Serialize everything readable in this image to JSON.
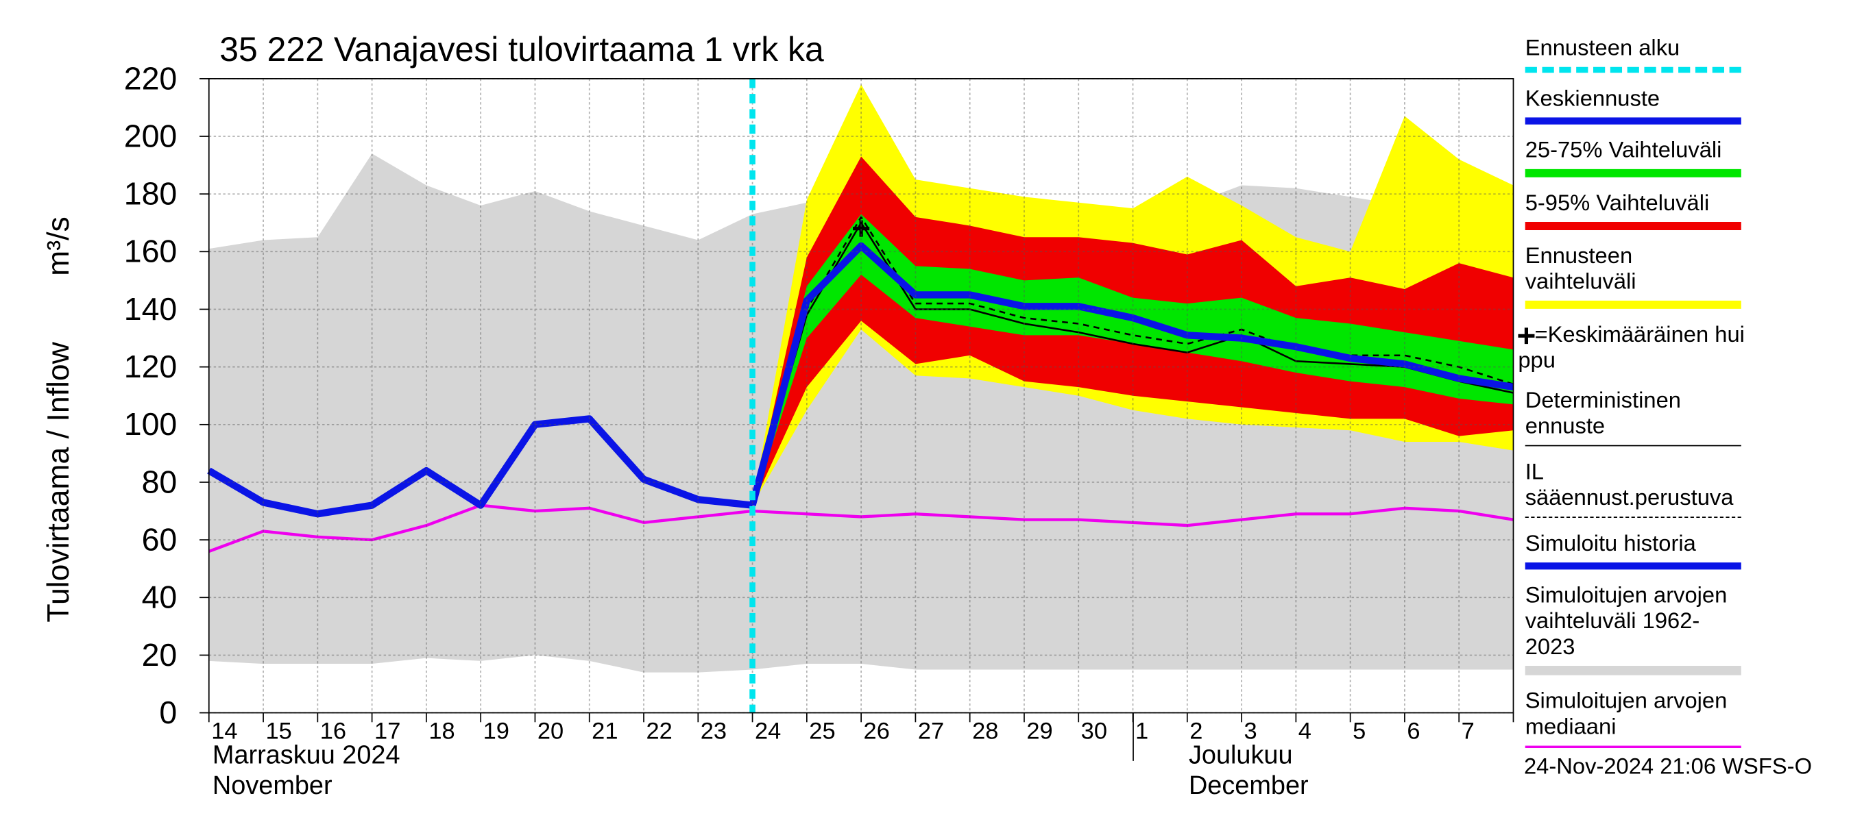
{
  "chart_data": {
    "type": "band-forecast",
    "title": "35 222 Vanajavesi tulovirtaama 1 vrk ka",
    "y_label": "Tulovirtaama / Inflow",
    "y_unit": "m³/s",
    "categories": [
      "14",
      "15",
      "16",
      "17",
      "18",
      "19",
      "20",
      "21",
      "22",
      "23",
      "24",
      "25",
      "26",
      "27",
      "28",
      "29",
      "30",
      "1",
      "2",
      "3",
      "4",
      "5",
      "6",
      "7",
      null
    ],
    "month_labels": [
      [
        "Marraskuu 2024",
        "November"
      ],
      [
        "Joulukuu",
        "December"
      ]
    ],
    "footer": "24-Nov-2024 21:06 WSFS-O",
    "ylim": [
      0,
      220
    ],
    "yticks": [
      0,
      20,
      40,
      60,
      80,
      100,
      120,
      140,
      160,
      180,
      200,
      220
    ],
    "grid": true,
    "series": [
      {
        "name": "Ennusteen alku",
        "kind": "vline",
        "color": "#00e5ee",
        "style": "thick-dashed",
        "index": 10
      },
      {
        "name": "Keskiennuste",
        "kind": "line",
        "color": "#0a14e6",
        "style": "thick",
        "values": [
          null,
          null,
          null,
          null,
          null,
          null,
          null,
          null,
          null,
          null,
          72,
          143,
          162,
          145,
          145,
          141,
          141,
          137,
          131,
          130,
          127,
          123,
          121,
          116,
          113
        ]
      },
      {
        "name": "25-75% Vaihteluväli",
        "kind": "band",
        "color": "#00e600",
        "upper": [
          null,
          null,
          null,
          null,
          null,
          null,
          null,
          null,
          null,
          null,
          72,
          148,
          173,
          155,
          154,
          150,
          151,
          144,
          142,
          144,
          137,
          135,
          132,
          129,
          126
        ],
        "lower": [
          null,
          null,
          null,
          null,
          null,
          null,
          null,
          null,
          null,
          null,
          72,
          130,
          152,
          137,
          134,
          131,
          131,
          128,
          125,
          122,
          118,
          115,
          113,
          109,
          107
        ]
      },
      {
        "name": "5-95% Vaihteluväli",
        "kind": "band",
        "color": "#f00000",
        "upper": [
          null,
          null,
          null,
          null,
          null,
          null,
          null,
          null,
          null,
          null,
          72,
          158,
          193,
          172,
          169,
          165,
          165,
          163,
          159,
          164,
          148,
          151,
          147,
          156,
          151
        ],
        "lower": [
          null,
          null,
          null,
          null,
          null,
          null,
          null,
          null,
          null,
          null,
          72,
          113,
          136,
          121,
          124,
          115,
          113,
          110,
          108,
          106,
          104,
          102,
          102,
          96,
          98
        ]
      },
      {
        "name": "Ennusteen vaihteluväli",
        "kind": "band",
        "color": "#ffff00",
        "upper": [
          null,
          null,
          null,
          null,
          null,
          null,
          null,
          null,
          null,
          null,
          72,
          178,
          218,
          185,
          182,
          179,
          177,
          175,
          186,
          176,
          165,
          160,
          207,
          192,
          183
        ],
        "lower": [
          null,
          null,
          null,
          null,
          null,
          null,
          null,
          null,
          null,
          null,
          72,
          105,
          133,
          117,
          116,
          113,
          110,
          105,
          102,
          100,
          99,
          98,
          94,
          94,
          91
        ]
      },
      {
        "name": "=Keskimääräinen huippu",
        "kind": "marker",
        "color": "#000000",
        "values": [
          null,
          null,
          null,
          null,
          null,
          null,
          null,
          null,
          null,
          null,
          null,
          null,
          168,
          null,
          null,
          null,
          null,
          null,
          null,
          null,
          null,
          null,
          null,
          null,
          null
        ]
      },
      {
        "name": "Deterministinen ennuste",
        "kind": "line",
        "color": "#000000",
        "style": "thin",
        "values": [
          null,
          null,
          null,
          null,
          null,
          null,
          null,
          null,
          null,
          null,
          72,
          138,
          170,
          140,
          140,
          135,
          132,
          128,
          125,
          131,
          122,
          121,
          120,
          115,
          111
        ]
      },
      {
        "name": "IL sääennust.perustuva",
        "kind": "line",
        "color": "#000000",
        "style": "thin-dashed",
        "values": [
          null,
          null,
          null,
          null,
          null,
          null,
          null,
          null,
          null,
          null,
          72,
          140,
          172,
          142,
          142,
          137,
          135,
          131,
          128,
          133,
          126,
          124,
          124,
          120,
          114
        ]
      },
      {
        "name": "Simuloitu historia",
        "kind": "line",
        "color": "#0a14e6",
        "style": "thick",
        "values": [
          84,
          73,
          69,
          72,
          84,
          72,
          100,
          102,
          81,
          74,
          72,
          null,
          null,
          null,
          null,
          null,
          null,
          null,
          null,
          null,
          null,
          null,
          null,
          null,
          null
        ]
      },
      {
        "name": "Simuloitujen arvojen vaihteluväli 1962-2023",
        "kind": "band",
        "color": "#d6d6d6",
        "upper": [
          161,
          164,
          165,
          194,
          183,
          176,
          181,
          174,
          169,
          164,
          173,
          177,
          182,
          177,
          171,
          162,
          155,
          166,
          176,
          183,
          182,
          179,
          176,
          172,
          171
        ],
        "lower": [
          18,
          17,
          17,
          17,
          19,
          18,
          20,
          18,
          14,
          14,
          15,
          17,
          17,
          15,
          15,
          15,
          15,
          15,
          15,
          15,
          15,
          15,
          15,
          15,
          15
        ]
      },
      {
        "name": "Simuloitujen arvojen mediaani",
        "kind": "line",
        "color": "#ee00ee",
        "style": "medium",
        "values": [
          56,
          63,
          61,
          60,
          65,
          72,
          70,
          71,
          66,
          68,
          70,
          69,
          68,
          69,
          68,
          67,
          67,
          66,
          65,
          67,
          69,
          69,
          71,
          70,
          67
        ]
      }
    ]
  }
}
